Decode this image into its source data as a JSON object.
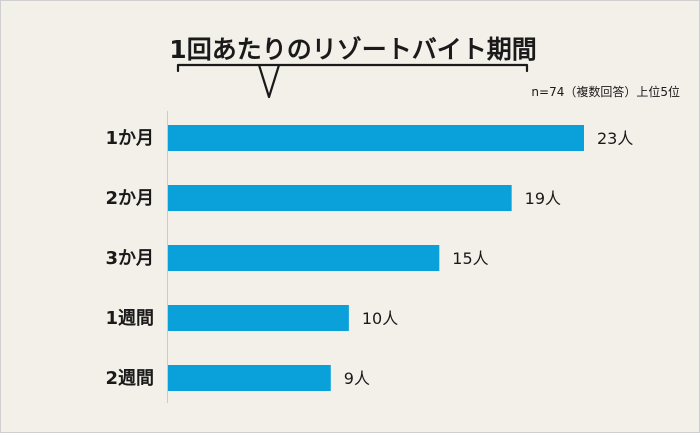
{
  "chart_data": {
    "type": "bar",
    "orientation": "horizontal",
    "title": "1回あたりのリゾートバイト期間",
    "note": "n=74（複数回答）上位5位",
    "categories": [
      "1か月",
      "2か月",
      "3か月",
      "1週間",
      "2週間"
    ],
    "values": [
      23,
      19,
      15,
      10,
      9
    ],
    "value_labels": [
      "23人",
      "19人",
      "15人",
      "10人",
      "9人"
    ],
    "xlim": [
      0,
      23
    ],
    "grid": false,
    "legend": "none"
  },
  "colors": {
    "bar": "#0aa0d9",
    "background": "#f3efe9",
    "text": "#1a1a1a",
    "axis": "#cccccc"
  }
}
